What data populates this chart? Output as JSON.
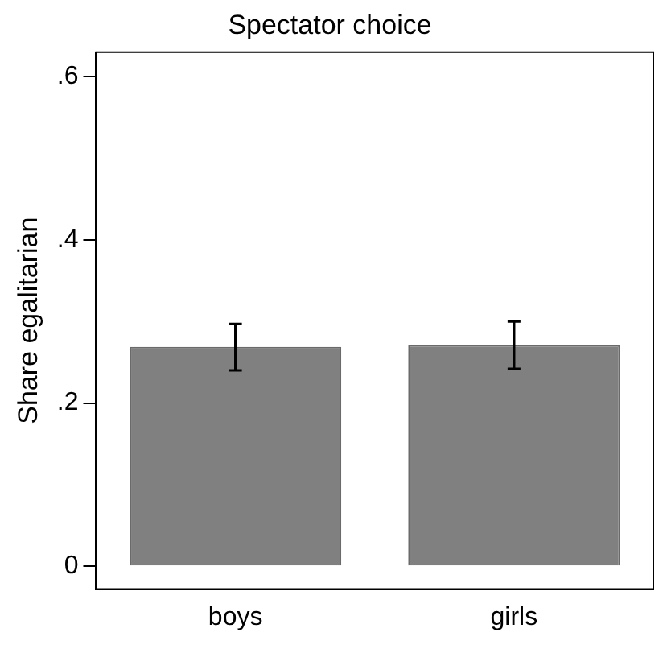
{
  "chart_data": {
    "type": "bar",
    "title": "Spectator choice",
    "ylabel": "Share egalitarian",
    "categories": [
      "boys",
      "girls"
    ],
    "values": [
      0.269,
      0.271
    ],
    "errors": [
      [
        0.24,
        0.297
      ],
      [
        0.242,
        0.3
      ]
    ],
    "color": "#808080",
    "ylim": [
      -0.028,
      0.63
    ],
    "yticks": [
      {
        "value": 0,
        "label": "0"
      },
      {
        "value": 0.2,
        "label": ".2"
      },
      {
        "value": 0.4,
        "label": ".4"
      },
      {
        "value": 0.6,
        "label": ".6"
      }
    ],
    "grid": false,
    "legend": false
  }
}
